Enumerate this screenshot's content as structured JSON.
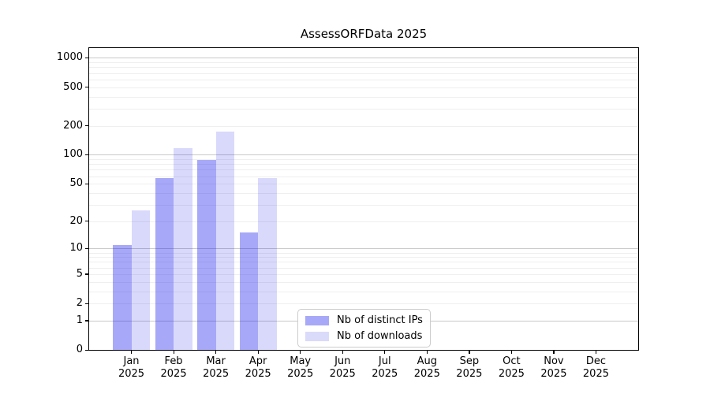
{
  "title": "AssessORFData 2025",
  "chart_data": {
    "type": "bar",
    "title": "AssessORFData 2025",
    "categories": [
      "Jan 2025",
      "Feb 2025",
      "Mar 2025",
      "Apr 2025",
      "May 2025",
      "Jun 2025",
      "Jul 2025",
      "Aug 2025",
      "Sep 2025",
      "Oct 2025",
      "Nov 2025",
      "Dec 2025"
    ],
    "series": [
      {
        "name": "Nb of distinct IPs",
        "values": [
          11,
          57,
          89,
          15,
          0,
          0,
          0,
          0,
          0,
          0,
          0,
          0
        ],
        "fill": "rgba(20,20,235,0.37)",
        "swatch": "#a8a8f8"
      },
      {
        "name": "Nb of downloads",
        "values": [
          26,
          118,
          175,
          57,
          0,
          0,
          0,
          0,
          0,
          0,
          0,
          0
        ],
        "fill": "rgba(20,20,235,0.16)",
        "swatch": "#dadafb"
      }
    ],
    "xlabel": "",
    "ylabel": "",
    "yscale": "log10(value+1)",
    "yticks": [
      0,
      1,
      2,
      5,
      10,
      20,
      50,
      100,
      200,
      500,
      1000
    ],
    "ylim": [
      0,
      1260
    ],
    "grid": {
      "major_values": [
        1,
        10,
        100,
        1000
      ],
      "minor_values": [
        2,
        3,
        4,
        5,
        6,
        7,
        8,
        9,
        20,
        30,
        40,
        50,
        60,
        70,
        80,
        90,
        200,
        300,
        400,
        500,
        600,
        700,
        800,
        900
      ],
      "major_color": "#c9c9c9",
      "minor_color": "#efefef"
    },
    "legend_position": "lower center"
  },
  "colors": {
    "bar_distinct_ips": "#a8a8f8",
    "bar_downloads": "#dadafb",
    "axis": "#000000",
    "grid_major": "#c9c9c9",
    "grid_minor": "#efefef"
  }
}
